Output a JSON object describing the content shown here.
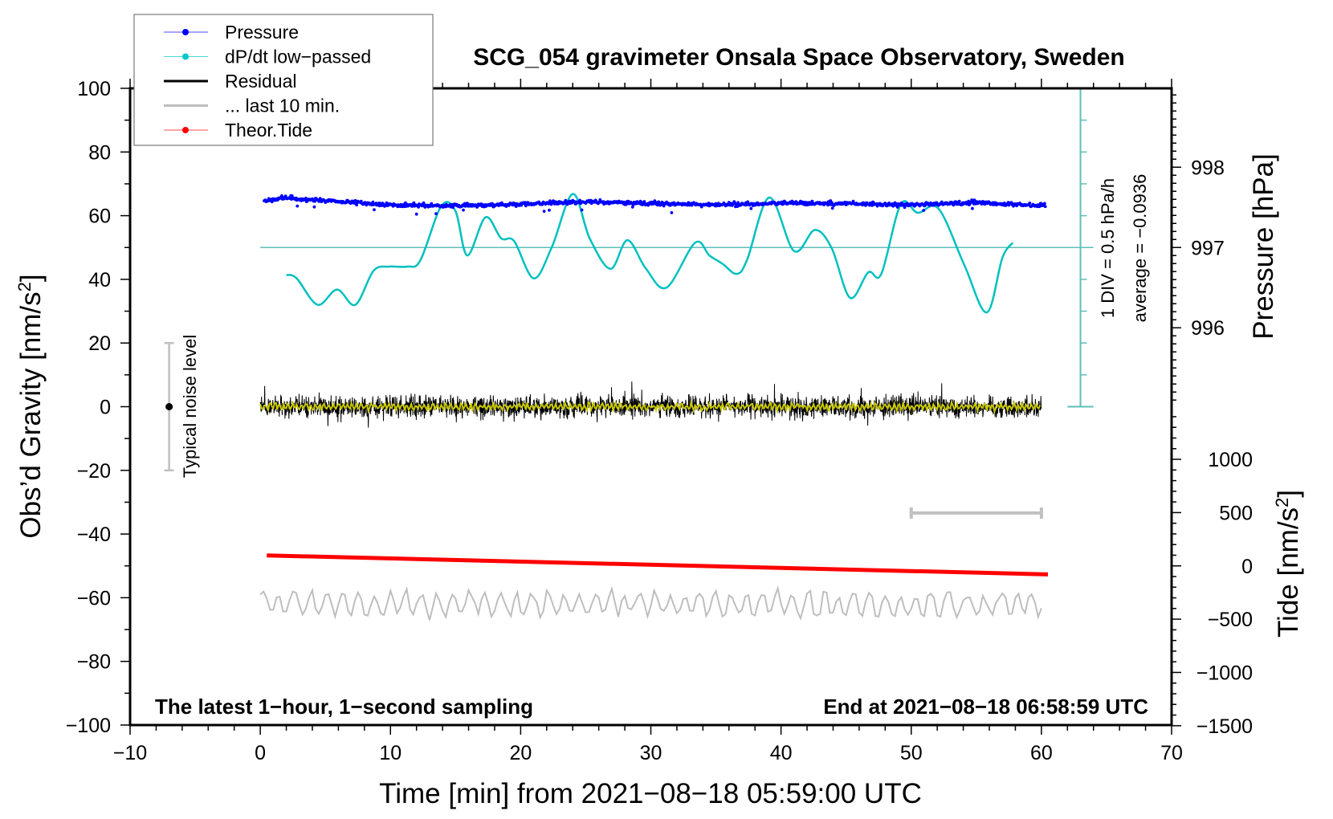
{
  "chart_data": {
    "type": "line",
    "title": "SCG_054 gravimeter Onsala Space Observatory, Sweden",
    "xlabel": "Time [min] from 2021−08−18 05:59:00 UTC",
    "ylabel": "Obs’d Gravity [nm/s",
    "ylabel_sup": "2",
    "ylabel_end": "]",
    "y2label": "Pressure [hPa]",
    "y3label": "Tide [nm/s",
    "y3label_sup": "2",
    "y3label_end": "]",
    "xlim": [
      -10,
      70
    ],
    "ylim": [
      -100,
      100
    ],
    "x_ticks": [
      "−10",
      "0",
      "10",
      "20",
      "30",
      "40",
      "50",
      "60",
      "70"
    ],
    "x_tick_values": [
      -10,
      0,
      10,
      20,
      30,
      40,
      50,
      60,
      70
    ],
    "y_ticks": [
      "100",
      "80",
      "60",
      "40",
      "20",
      "0",
      "−20",
      "−40",
      "−60",
      "−80",
      "−100"
    ],
    "y_tick_values": [
      100,
      80,
      60,
      40,
      20,
      0,
      -20,
      -40,
      -60,
      -80,
      -100
    ],
    "pressure_ticks": [
      "998",
      "997",
      "996"
    ],
    "pressure_tick_values": [
      998,
      997,
      996
    ],
    "tide_ticks": [
      "1000",
      "500",
      "0",
      "−500",
      "−1000",
      "−1500"
    ],
    "tide_tick_values": [
      1000,
      500,
      0,
      -500,
      -1000,
      -1500
    ],
    "legend": {
      "position": "top-left",
      "entries": [
        {
          "label": "Pressure",
          "color": "#0000ff",
          "marker": "dot"
        },
        {
          "label": "dP/dt low−passed",
          "color": "#00c8c8",
          "marker": "dot"
        },
        {
          "label": "Residual",
          "color": "#000000",
          "marker": "line"
        },
        {
          "label": "... last 10 min.",
          "color": "#bebebe",
          "marker": "line"
        },
        {
          "label": "Theor.Tide",
          "color": "#ff0000",
          "marker": "dot"
        }
      ]
    },
    "series": [
      {
        "name": "Pressure",
        "unit": "hPa",
        "color": "#0000ff",
        "trend_t": [
          0,
          2,
          5,
          10,
          15,
          20,
          25,
          30,
          35,
          40,
          45,
          50,
          55,
          60.3
        ],
        "trend_hPa": [
          997.58,
          997.62,
          997.58,
          997.53,
          997.52,
          997.54,
          997.57,
          997.55,
          997.53,
          997.55,
          997.55,
          997.53,
          997.56,
          997.52
        ],
        "noise_hPa": 0.02
      },
      {
        "name": "dP/dt low-passed",
        "unit": "gravity-axis units (1 DIV = 10)",
        "color": "#00c0c0",
        "t": [
          2.0,
          2.8,
          4.4,
          5.9,
          7.3,
          8.7,
          9.9,
          11.3,
          12.3,
          13.9,
          15.0,
          15.9,
          17.3,
          18.5,
          19.5,
          21.0,
          22.4,
          24.0,
          25.3,
          26.9,
          28.2,
          29.6,
          31.2,
          33.4,
          34.5,
          35.5,
          36.6,
          37.4,
          39.1,
          41.0,
          42.6,
          43.9,
          45.3,
          46.7,
          47.7,
          49.2,
          50.5,
          52.1,
          54.1,
          55.8,
          57.0,
          57.8
        ],
        "y": [
          41.4,
          40.3,
          32,
          36.8,
          32,
          42.7,
          44,
          44,
          46,
          63,
          61.4,
          47.5,
          59.5,
          52.9,
          52,
          40.3,
          50.2,
          66.8,
          52.9,
          43.3,
          52.3,
          43.5,
          37.4,
          51.5,
          47.5,
          44.9,
          41.7,
          46.2,
          65.7,
          48.9,
          55.5,
          49.7,
          34.2,
          42.2,
          41.7,
          63.6,
          60.9,
          62.2,
          44.3,
          29.6,
          46.7,
          51.5
        ]
      },
      {
        "name": "Residual",
        "color": "#000000",
        "t_range": [
          0,
          60
        ],
        "center": 0,
        "amplitude": 3
      },
      {
        "name": "Residual smoothed",
        "color": "#c8c800",
        "t_range": [
          0,
          60
        ],
        "center": 0,
        "amplitude": 0.8
      },
      {
        "name": "... last 10 min.",
        "color": "#bebebe",
        "t_range": [
          0,
          60
        ],
        "center": -62,
        "amplitude": 3.5
      },
      {
        "name": "Theor.Tide",
        "unit": "nm/s2",
        "color": "#ff0000",
        "t": [
          0.5,
          60.5
        ],
        "tide": [
          98,
          -80
        ]
      }
    ],
    "dpdt_axis": {
      "label": "1 DIV = 0.5 hPa/h",
      "average": "average = −0.0936",
      "t": 63,
      "range": [
        0,
        100
      ],
      "zero_line": 50
    },
    "last10_bar": {
      "t": [
        50,
        60
      ],
      "y": -33.4
    },
    "noise_bar": {
      "label": "Typical noise level",
      "t": -7,
      "range": [
        -20,
        20
      ],
      "center": 0
    },
    "footer_left": "The latest 1−hour, 1−second sampling",
    "footer_right": "End at 2021−08−18 06:58:59 UTC"
  }
}
